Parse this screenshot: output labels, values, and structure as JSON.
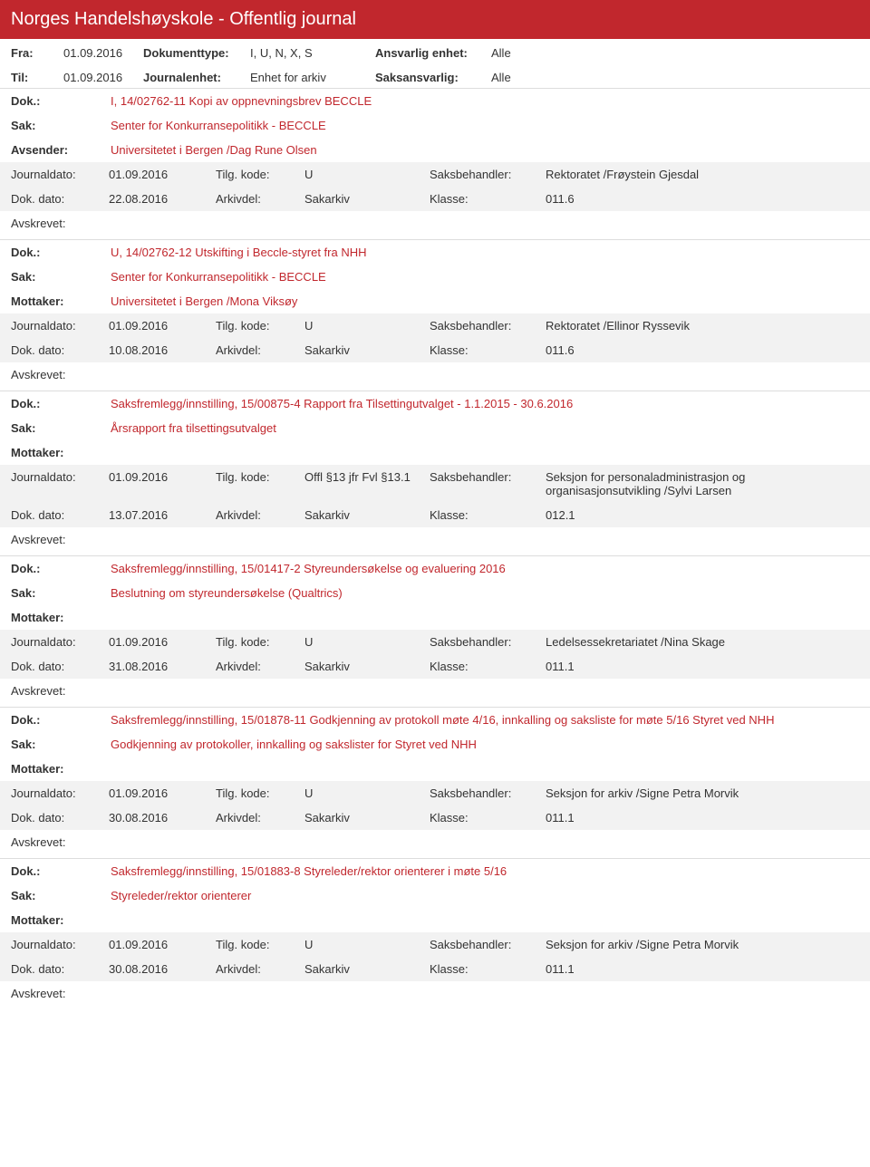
{
  "header": {
    "title": "Norges Handelshøyskole - Offentlig journal"
  },
  "filters": {
    "fra_label": "Fra:",
    "fra_value": "01.09.2016",
    "til_label": "Til:",
    "til_value": "01.09.2016",
    "dokumenttype_label": "Dokumenttype:",
    "dokumenttype_value": "I, U, N, X, S",
    "journalenhet_label": "Journalenhet:",
    "journalenhet_value": "Enhet for arkiv",
    "ansvarlig_label": "Ansvarlig enhet:",
    "ansvarlig_value": "Alle",
    "saksansvarlig_label": "Saksansvarlig:",
    "saksansvarlig_value": "Alle"
  },
  "labels": {
    "dok": "Dok.:",
    "sak": "Sak:",
    "avsender": "Avsender:",
    "mottaker": "Mottaker:",
    "journaldato": "Journaldato:",
    "dokdato": "Dok. dato:",
    "tilgkode": "Tilg. kode:",
    "arkivdel": "Arkivdel:",
    "saksbehandler": "Saksbehandler:",
    "klasse": "Klasse:",
    "avskrevet": "Avskrevet:"
  },
  "entries": [
    {
      "dok": "I, 14/02762-11 Kopi av oppnevningsbrev BECCLE",
      "sak": "Senter for Konkurransepolitikk - BECCLE",
      "party_label": "Avsender:",
      "party": "Universitetet i Bergen /Dag Rune Olsen",
      "journaldato": "01.09.2016",
      "tilgkode": "U",
      "saksbehandler": "Rektoratet /Frøystein Gjesdal",
      "dokdato": "22.08.2016",
      "arkivdel": "Sakarkiv",
      "klasse": "011.6"
    },
    {
      "dok": "U, 14/02762-12 Utskifting i Beccle-styret fra NHH",
      "sak": "Senter for Konkurransepolitikk - BECCLE",
      "party_label": "Mottaker:",
      "party": "Universitetet i Bergen /Mona Viksøy",
      "journaldato": "01.09.2016",
      "tilgkode": "U",
      "saksbehandler": "Rektoratet /Ellinor Ryssevik",
      "dokdato": "10.08.2016",
      "arkivdel": "Sakarkiv",
      "klasse": "011.6"
    },
    {
      "dok": "Saksfremlegg/innstilling, 15/00875-4 Rapport fra Tilsettingutvalget - 1.1.2015 - 30.6.2016",
      "sak": "Årsrapport fra tilsettingsutvalget",
      "party_label": "Mottaker:",
      "party": "",
      "journaldato": "01.09.2016",
      "tilgkode": "Offl §13 jfr Fvl §13.1",
      "saksbehandler": "Seksjon for personaladministrasjon og organisasjonsutvikling /Sylvi Larsen",
      "dokdato": "13.07.2016",
      "arkivdel": "Sakarkiv",
      "klasse": "012.1"
    },
    {
      "dok": "Saksfremlegg/innstilling, 15/01417-2 Styreundersøkelse og evaluering 2016",
      "sak": "Beslutning om styreundersøkelse (Qualtrics)",
      "party_label": "Mottaker:",
      "party": "",
      "journaldato": "01.09.2016",
      "tilgkode": "U",
      "saksbehandler": "Ledelsessekretariatet /Nina Skage",
      "dokdato": "31.08.2016",
      "arkivdel": "Sakarkiv",
      "klasse": "011.1"
    },
    {
      "dok": "Saksfremlegg/innstilling, 15/01878-11 Godkjenning av protokoll møte 4/16, innkalling og saksliste for møte 5/16 Styret ved NHH",
      "sak": "Godkjenning av protokoller, innkalling og sakslister for Styret ved NHH",
      "party_label": "Mottaker:",
      "party": "",
      "journaldato": "01.09.2016",
      "tilgkode": "U",
      "saksbehandler": "Seksjon for arkiv /Signe Petra Morvik",
      "dokdato": "30.08.2016",
      "arkivdel": "Sakarkiv",
      "klasse": "011.1"
    },
    {
      "dok": "Saksfremlegg/innstilling, 15/01883-8 Styreleder/rektor orienterer i møte 5/16",
      "sak": "Styreleder/rektor orienterer",
      "party_label": "Mottaker:",
      "party": "",
      "journaldato": "01.09.2016",
      "tilgkode": "U",
      "saksbehandler": "Seksjon for arkiv /Signe Petra Morvik",
      "dokdato": "30.08.2016",
      "arkivdel": "Sakarkiv",
      "klasse": "011.1"
    }
  ],
  "colors": {
    "header_bg": "#c1272d",
    "accent": "#c1272d",
    "gray_bg": "#f2f2f2",
    "border": "#dddddd"
  }
}
